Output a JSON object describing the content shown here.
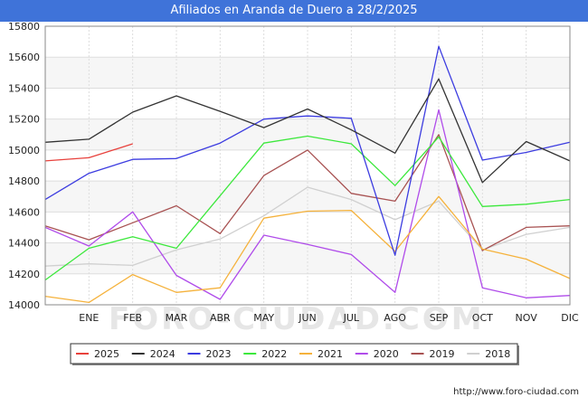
{
  "header": {
    "title": "Afiliados en Aranda de Duero a 28/2/2025"
  },
  "footer": {
    "url": "http://www.foro-ciudad.com"
  },
  "watermark": "FORO-CIUDAD.COM",
  "chart_data": {
    "type": "line",
    "title": "Afiliados en Aranda de Duero a 28/2/2025",
    "categories": [
      "",
      "ENE",
      "FEB",
      "MAR",
      "ABR",
      "MAY",
      "JUN",
      "JUL",
      "AGO",
      "SEP",
      "OCT",
      "NOV",
      "DIC"
    ],
    "ylim": [
      14000,
      15800
    ],
    "yticks": [
      14000,
      14200,
      14400,
      14600,
      14800,
      15000,
      15200,
      15400,
      15600,
      15800
    ],
    "grid": true,
    "legend_position": "bottom",
    "series": [
      {
        "name": "2025",
        "color": "#e8413c",
        "values": [
          14930,
          14950,
          15040,
          null,
          null,
          null,
          null,
          null,
          null,
          null,
          null,
          null,
          null
        ]
      },
      {
        "name": "2024",
        "color": "#333333",
        "values": [
          15050,
          15070,
          15245,
          15350,
          15250,
          15145,
          15265,
          15130,
          14980,
          15460,
          14790,
          15055,
          14930
        ]
      },
      {
        "name": "2023",
        "color": "#3c3ce0",
        "values": [
          14680,
          14850,
          14940,
          14945,
          15045,
          15200,
          15220,
          15205,
          14320,
          15670,
          14935,
          14985,
          15050
        ]
      },
      {
        "name": "2022",
        "color": "#3ce83c",
        "values": [
          14160,
          14365,
          14440,
          14365,
          14705,
          15045,
          15090,
          15040,
          14770,
          15085,
          14635,
          14650,
          14680
        ]
      },
      {
        "name": "2021",
        "color": "#f5b23c",
        "values": [
          14055,
          14015,
          14195,
          14080,
          14110,
          14560,
          14605,
          14610,
          14345,
          14700,
          14360,
          14295,
          14170
        ]
      },
      {
        "name": "2020",
        "color": "#b04cea",
        "values": [
          14500,
          14380,
          14600,
          14190,
          14035,
          14450,
          14390,
          14325,
          14080,
          15260,
          14110,
          14045,
          14060
        ]
      },
      {
        "name": "2019",
        "color": "#a85252",
        "values": [
          14510,
          14420,
          14530,
          14640,
          14460,
          14835,
          15000,
          14720,
          14670,
          15100,
          14350,
          14500,
          14510
        ]
      },
      {
        "name": "2018",
        "color": "#d0d0d0",
        "values": [
          14250,
          14265,
          14255,
          14355,
          14425,
          14575,
          14760,
          14680,
          14550,
          14670,
          14355,
          14455,
          14500
        ]
      }
    ]
  }
}
